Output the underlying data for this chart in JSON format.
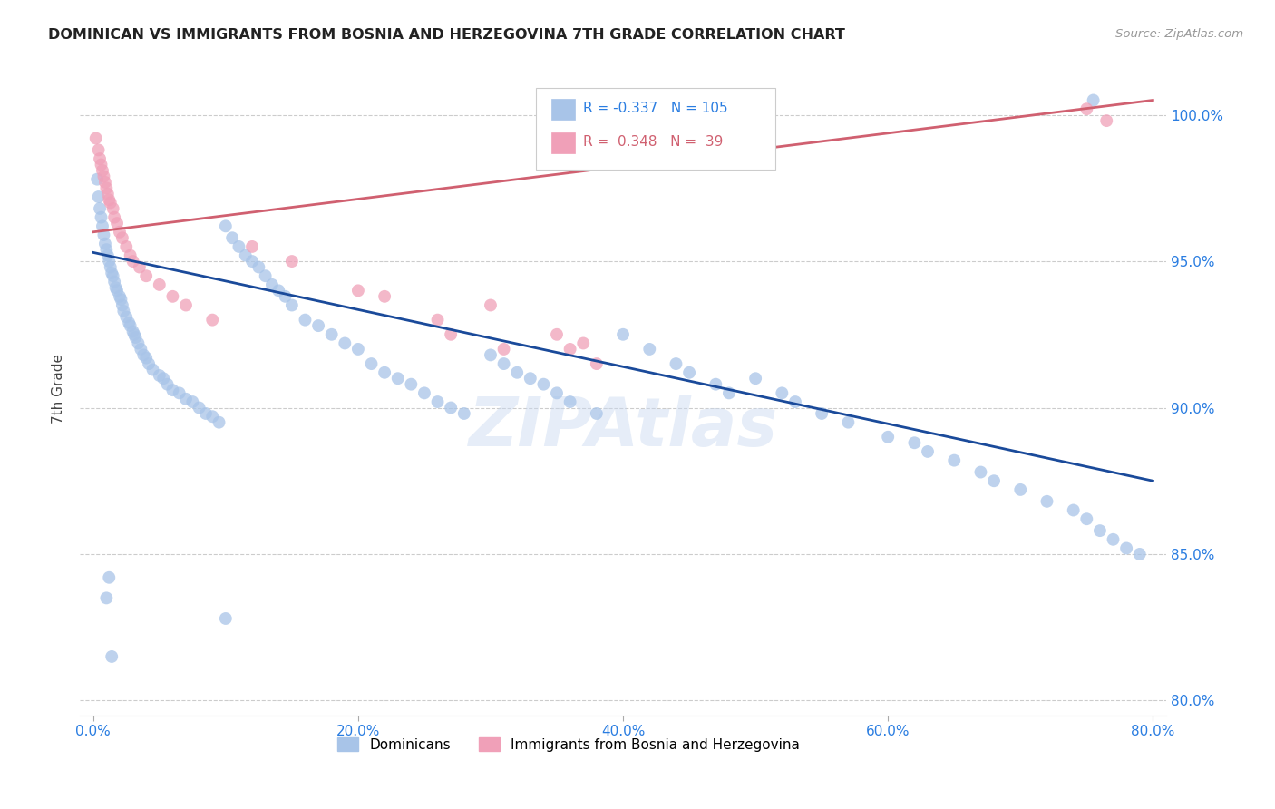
{
  "title": "DOMINICAN VS IMMIGRANTS FROM BOSNIA AND HERZEGOVINA 7TH GRADE CORRELATION CHART",
  "source": "Source: ZipAtlas.com",
  "ylabel": "7th Grade",
  "legend_labels": [
    "Dominicans",
    "Immigrants from Bosnia and Herzegovina"
  ],
  "r_blue": -0.337,
  "n_blue": 105,
  "r_pink": 0.348,
  "n_pink": 39,
  "blue_color": "#a8c4e8",
  "pink_color": "#f0a0b8",
  "blue_line_color": "#1a4a9a",
  "pink_line_color": "#d06070",
  "watermark": "ZIPAtlas",
  "xlim": [
    -1.0,
    81.0
  ],
  "ylim": [
    79.5,
    101.8
  ],
  "ytick_vals": [
    80.0,
    85.0,
    90.0,
    95.0,
    100.0
  ],
  "xtick_vals": [
    0.0,
    20.0,
    40.0,
    60.0,
    80.0
  ],
  "blue_trend_x0": 0.0,
  "blue_trend_x1": 80.0,
  "blue_trend_y0": 95.3,
  "blue_trend_y1": 87.5,
  "pink_trend_x0": 0.0,
  "pink_trend_x1": 80.0,
  "pink_trend_y0": 96.0,
  "pink_trend_y1": 100.5,
  "blue_x": [
    0.3,
    0.4,
    0.5,
    0.6,
    0.7,
    0.8,
    0.9,
    1.0,
    1.1,
    1.2,
    1.3,
    1.4,
    1.5,
    1.6,
    1.7,
    1.8,
    2.0,
    2.1,
    2.2,
    2.3,
    2.5,
    2.7,
    2.8,
    3.0,
    3.1,
    3.2,
    3.4,
    3.6,
    3.8,
    4.0,
    4.2,
    4.5,
    5.0,
    5.3,
    5.6,
    6.0,
    6.5,
    7.0,
    7.5,
    8.0,
    8.5,
    9.0,
    9.5,
    10.0,
    10.5,
    11.0,
    11.5,
    12.0,
    12.5,
    13.0,
    13.5,
    14.0,
    14.5,
    15.0,
    16.0,
    17.0,
    18.0,
    19.0,
    20.0,
    21.0,
    22.0,
    23.0,
    24.0,
    25.0,
    26.0,
    27.0,
    28.0,
    30.0,
    31.0,
    32.0,
    33.0,
    34.0,
    35.0,
    36.0,
    38.0,
    40.0,
    42.0,
    44.0,
    45.0,
    47.0,
    48.0,
    50.0,
    52.0,
    53.0,
    55.0,
    57.0,
    60.0,
    62.0,
    63.0,
    65.0,
    67.0,
    68.0,
    70.0,
    72.0,
    74.0,
    75.0,
    76.0,
    77.0,
    78.0,
    79.0,
    10.0,
    1.0,
    1.2,
    1.4,
    75.5
  ],
  "blue_y": [
    97.8,
    97.2,
    96.8,
    96.5,
    96.2,
    95.9,
    95.6,
    95.4,
    95.2,
    95.0,
    94.8,
    94.6,
    94.5,
    94.3,
    94.1,
    94.0,
    93.8,
    93.7,
    93.5,
    93.3,
    93.1,
    92.9,
    92.8,
    92.6,
    92.5,
    92.4,
    92.2,
    92.0,
    91.8,
    91.7,
    91.5,
    91.3,
    91.1,
    91.0,
    90.8,
    90.6,
    90.5,
    90.3,
    90.2,
    90.0,
    89.8,
    89.7,
    89.5,
    96.2,
    95.8,
    95.5,
    95.2,
    95.0,
    94.8,
    94.5,
    94.2,
    94.0,
    93.8,
    93.5,
    93.0,
    92.8,
    92.5,
    92.2,
    92.0,
    91.5,
    91.2,
    91.0,
    90.8,
    90.5,
    90.2,
    90.0,
    89.8,
    91.8,
    91.5,
    91.2,
    91.0,
    90.8,
    90.5,
    90.2,
    89.8,
    92.5,
    92.0,
    91.5,
    91.2,
    90.8,
    90.5,
    91.0,
    90.5,
    90.2,
    89.8,
    89.5,
    89.0,
    88.8,
    88.5,
    88.2,
    87.8,
    87.5,
    87.2,
    86.8,
    86.5,
    86.2,
    85.8,
    85.5,
    85.2,
    85.0,
    82.8,
    83.5,
    84.2,
    81.5,
    100.5
  ],
  "pink_x": [
    0.2,
    0.4,
    0.5,
    0.6,
    0.7,
    0.8,
    0.9,
    1.0,
    1.1,
    1.2,
    1.3,
    1.5,
    1.6,
    1.8,
    2.0,
    2.2,
    2.5,
    2.8,
    3.0,
    3.5,
    4.0,
    5.0,
    6.0,
    7.0,
    9.0,
    12.0,
    15.0,
    20.0,
    22.0,
    26.0,
    27.0,
    30.0,
    31.0,
    35.0,
    36.0,
    37.0,
    38.0,
    75.0,
    76.5
  ],
  "pink_y": [
    99.2,
    98.8,
    98.5,
    98.3,
    98.1,
    97.9,
    97.7,
    97.5,
    97.3,
    97.1,
    97.0,
    96.8,
    96.5,
    96.3,
    96.0,
    95.8,
    95.5,
    95.2,
    95.0,
    94.8,
    94.5,
    94.2,
    93.8,
    93.5,
    93.0,
    95.5,
    95.0,
    94.0,
    93.8,
    93.0,
    92.5,
    93.5,
    92.0,
    92.5,
    92.0,
    92.2,
    91.5,
    100.2,
    99.8
  ]
}
